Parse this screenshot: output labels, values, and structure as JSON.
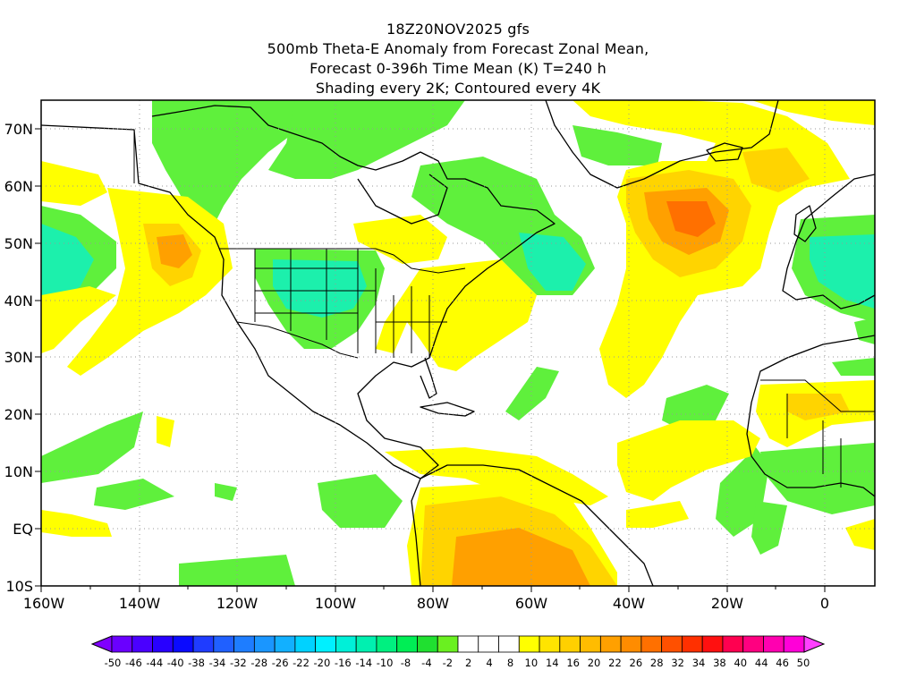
{
  "title": {
    "line1": "18Z20NOV2025 gfs",
    "line2": "500mb Theta-E Anomaly from Forecast Zonal Mean,",
    "line3": "Forecast 0-396h Time Mean (K) T=240 h",
    "line4": "Shading every 2K; Contoured every 4K"
  },
  "map": {
    "lon_range": [
      -160,
      10
    ],
    "lat_range": [
      -10,
      75
    ],
    "grid": "dotted",
    "x_ticks": [
      "160W",
      "140W",
      "120W",
      "100W",
      "80W",
      "60W",
      "40W",
      "20W",
      "0"
    ],
    "y_ticks": [
      "10S",
      "EQ",
      "10N",
      "20N",
      "30N",
      "40N",
      "50N",
      "60N",
      "70N"
    ]
  },
  "colorbar": {
    "labels": [
      "-50",
      "-46",
      "-44",
      "-40",
      "-38",
      "-34",
      "-32",
      "-28",
      "-26",
      "-22",
      "-20",
      "-16",
      "-14",
      "-10",
      "-8",
      "-4",
      "-2",
      "2",
      "4",
      "8",
      "10",
      "14",
      "16",
      "20",
      "22",
      "26",
      "28",
      "32",
      "34",
      "38",
      "40",
      "44",
      "46",
      "50"
    ],
    "colors": [
      "#8000ff",
      "#6a00ff",
      "#4a00ff",
      "#2800ff",
      "#0a0aff",
      "#1f3cff",
      "#2060ff",
      "#1e7dff",
      "#1a96ff",
      "#12b0ff",
      "#00d2ff",
      "#00f0ff",
      "#00f0d8",
      "#00f0b0",
      "#00f080",
      "#00ee55",
      "#20e030",
      "#6af020",
      "#ffffff",
      "#ffffff",
      "#ffffff",
      "#ffff00",
      "#ffe400",
      "#ffd000",
      "#ffbc00",
      "#ffa000",
      "#ff8c00",
      "#ff7000",
      "#ff5000",
      "#ff3000",
      "#ff1010",
      "#ff0050",
      "#ff0080",
      "#ff00b0",
      "#ff00d8",
      "#ff40ff"
    ]
  },
  "colors": {
    "green": "#5ff03c",
    "teal": "#1cf0ac",
    "cyan": "#10f0d8",
    "yellow": "#ffff00",
    "gold": "#ffd400",
    "orange": "#ffa000",
    "darkorange": "#ff7000"
  }
}
